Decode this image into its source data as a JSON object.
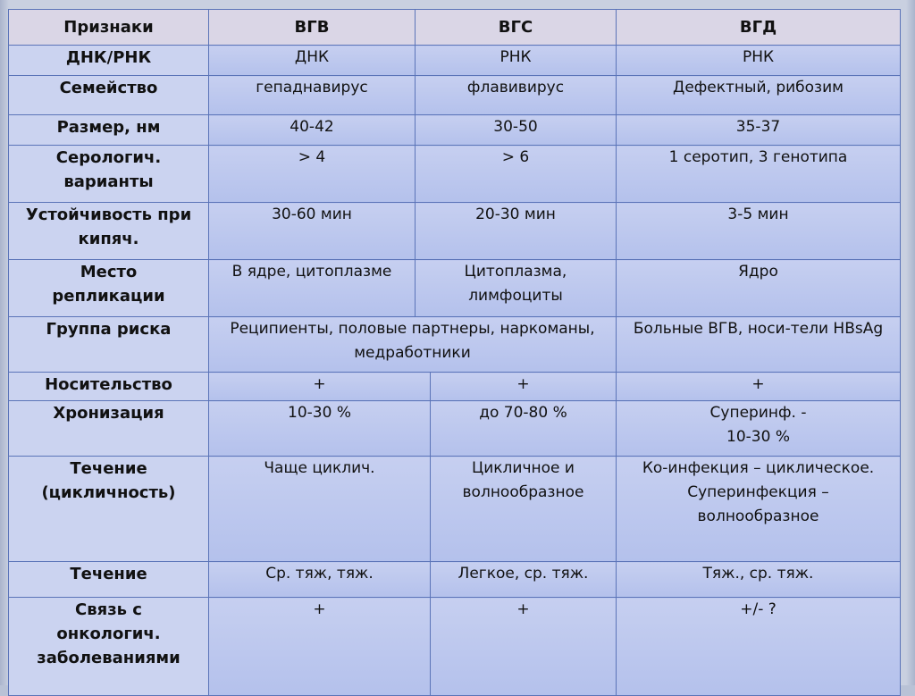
{
  "header": {
    "col0": "Признаки",
    "col1": "ВГВ",
    "col2": "ВГС",
    "col3": "ВГД"
  },
  "rows": {
    "dna": {
      "label": "ДНК/РНК",
      "b": "ДНК",
      "c": "РНК",
      "d": "РНК"
    },
    "family": {
      "label": "Семейство",
      "b": "гепаднавирус",
      "c": "флавивирус",
      "d": "Дефектный, рибозим"
    },
    "size": {
      "label": "Размер, нм",
      "b": "40-42",
      "c": "30-50",
      "d": "35-37"
    },
    "sero": {
      "label1": "Серологич.",
      "label2": "варианты",
      "b": "> 4",
      "c": "> 6",
      "d": "1 серотип, 3 генотипа"
    },
    "stability": {
      "label1": "Устойчивость при",
      "label2": "кипяч.",
      "b": "30-60 мин",
      "c": "20-30 мин",
      "d": "3-5 мин"
    },
    "replication": {
      "label1": "Место",
      "label2": "репликации",
      "b": "В ядре, цитоплазме",
      "c1": "Цитоплазма,",
      "c2": "лимфоциты",
      "d": "Ядро"
    },
    "risk": {
      "label": "Группа риска",
      "bc1": "Реципиенты, половые партнеры, наркоманы,",
      "bc2": "медработники",
      "d": "Больные ВГВ, носи-тели HBsAg"
    },
    "carrier": {
      "label": "Носительство",
      "b": "+",
      "c": "+",
      "d": "+"
    },
    "chronic": {
      "label": "Хронизация",
      "b": "10-30 %",
      "c": "до 70-80 %",
      "d1": "Суперинф. -",
      "d2": "10-30 %"
    },
    "course_cyc": {
      "label1": "Течение",
      "label2": "(цикличность)",
      "b": "Чаще циклич.",
      "c1": "Цикличное и",
      "c2": "волнообразное",
      "d1": "Ко-инфекция – циклическое.",
      "d2": "Суперинфекция –",
      "d3": "волнообразное"
    },
    "course": {
      "label": "Течение",
      "b": "Ср. тяж, тяж.",
      "c": "Легкое, ср. тяж.",
      "d": "Тяж., ср. тяж."
    },
    "onco": {
      "label1": "Связь с",
      "label2": "онкологич.",
      "label3": "заболеваниями",
      "b": "+",
      "c": "+",
      "d": "+/- ?"
    }
  }
}
